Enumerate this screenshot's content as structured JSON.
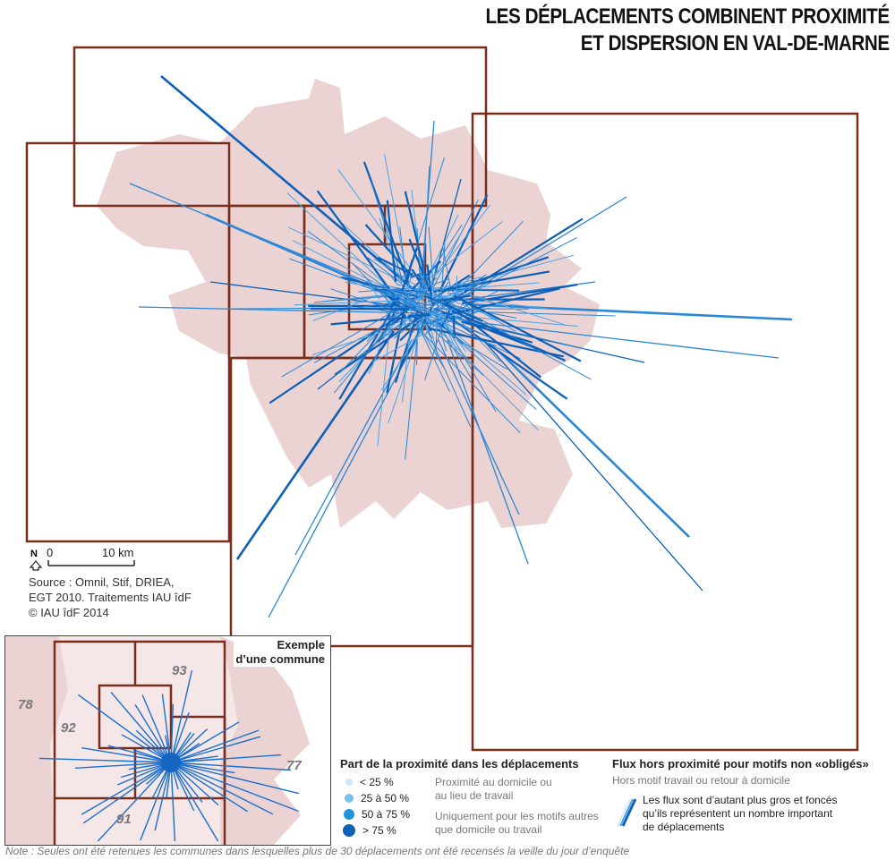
{
  "title": {
    "line1": "LES DÉPLACEMENTS COMBINENT PROXIMITÉ",
    "line2": "ET DISPERSION EN VAL-DE-MARNE"
  },
  "colors": {
    "boundary": "#7a2e1a",
    "urban": "#ecd3d3",
    "flow_light": "#4a9fe0",
    "flow_dark": "#0b5fb8"
  },
  "scale": {
    "north": "N",
    "zero": "0",
    "distance": "10 km"
  },
  "source": {
    "line1": "Source : Omnil, Stif, DRIEA,",
    "line2": "EGT 2010. Traitements IAU îdF",
    "line3": "© IAU îdF 2014"
  },
  "inset": {
    "title_line1": "Exemple",
    "title_line2": "d’une commune",
    "departments": [
      "78",
      "92",
      "93",
      "77",
      "91"
    ]
  },
  "legend_proximity": {
    "title": "Part de la proximité dans les déplacements",
    "classes": [
      {
        "label": "< 25 %",
        "color": "#cfe6f8"
      },
      {
        "label": "25 à 50 %",
        "color": "#7cc0ee"
      },
      {
        "label": "50 à 75 %",
        "color": "#1f93dd"
      },
      {
        "label": "> 75 %",
        "color": "#0a64b5"
      }
    ],
    "note1_line1": "Proximité au domicile ou",
    "note1_line2": "au lieu de travail",
    "note2_line1": "Uniquement pour les motifs autres",
    "note2_line2": "que domicile ou travail"
  },
  "legend_flux": {
    "title": "Flux hors proximité pour motifs non «obligés»",
    "subtitle": "Hors motif travail ou retour à domicile",
    "desc_line1": "Les flux sont d’autant plus gros et foncés",
    "desc_line2": "qu’ils représentent un nombre important",
    "desc_line3": "de déplacements"
  },
  "note": "Note : Seules ont été retenues les communes dans lesquelles plus de 30 déplacements ont été recensés la veille du jour d’enquête"
}
